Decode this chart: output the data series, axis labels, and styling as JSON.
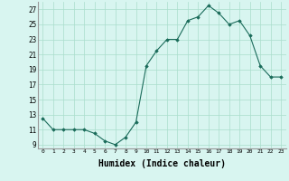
{
  "x": [
    0,
    1,
    2,
    3,
    4,
    5,
    6,
    7,
    8,
    9,
    10,
    11,
    12,
    13,
    14,
    15,
    16,
    17,
    18,
    19,
    20,
    21,
    22,
    23
  ],
  "y": [
    12.5,
    11.0,
    11.0,
    11.0,
    11.0,
    10.5,
    9.5,
    9.0,
    10.0,
    12.0,
    19.5,
    21.5,
    23.0,
    23.0,
    25.5,
    26.0,
    27.5,
    26.5,
    25.0,
    25.5,
    23.5,
    19.5,
    18.0,
    18.0
  ],
  "line_color": "#1a6b5a",
  "marker": "D",
  "marker_size": 1.8,
  "bg_color": "#d8f5f0",
  "grid_color": "#aaddcc",
  "xlabel": "Humidex (Indice chaleur)",
  "xlabel_fontsize": 7,
  "yticks": [
    9,
    11,
    13,
    15,
    17,
    19,
    21,
    23,
    25,
    27
  ],
  "xticks": [
    0,
    1,
    2,
    3,
    4,
    5,
    6,
    7,
    8,
    9,
    10,
    11,
    12,
    13,
    14,
    15,
    16,
    17,
    18,
    19,
    20,
    21,
    22,
    23
  ],
  "xlim": [
    -0.5,
    23.5
  ],
  "ylim": [
    8.5,
    28.0
  ]
}
